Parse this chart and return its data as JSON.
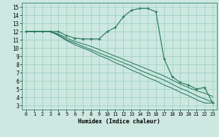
{
  "xlabel": "Humidex (Indice chaleur)",
  "bg_color": "#cce8e0",
  "grid_color": "#99ccbb",
  "line_color": "#2e7a62",
  "xlim": [
    -0.5,
    23.5
  ],
  "ylim": [
    2.5,
    15.5
  ],
  "xticks": [
    0,
    1,
    2,
    3,
    4,
    5,
    6,
    7,
    8,
    9,
    10,
    11,
    12,
    13,
    14,
    15,
    16,
    17,
    18,
    19,
    20,
    21,
    22,
    23
  ],
  "yticks": [
    3,
    4,
    5,
    6,
    7,
    8,
    9,
    10,
    11,
    12,
    13,
    14,
    15
  ],
  "lines": [
    {
      "x": [
        0,
        1,
        2,
        3,
        4,
        5,
        6,
        7,
        8,
        9,
        10,
        11,
        12,
        13,
        14,
        15,
        16,
        17,
        18,
        19,
        20,
        21,
        22,
        23
      ],
      "y": [
        12,
        12,
        12,
        12,
        12,
        11.5,
        11.2,
        11.1,
        11.1,
        11.1,
        12.0,
        12.5,
        13.8,
        14.6,
        14.8,
        14.8,
        14.4,
        8.7,
        6.5,
        5.8,
        5.5,
        5.0,
        5.2,
        3.3
      ],
      "markers": true
    },
    {
      "x": [
        0,
        1,
        2,
        3,
        4,
        5,
        6,
        7,
        8,
        9,
        10,
        11,
        12,
        13,
        14,
        15,
        16,
        17,
        18,
        19,
        20,
        21,
        22,
        23
      ],
      "y": [
        12,
        12,
        12,
        12,
        11.7,
        11.2,
        10.8,
        10.5,
        10.2,
        9.8,
        9.4,
        9.0,
        8.6,
        8.2,
        7.8,
        7.4,
        7.0,
        6.6,
        6.1,
        5.6,
        5.2,
        4.8,
        4.5,
        4.1
      ],
      "markers": false
    },
    {
      "x": [
        0,
        1,
        2,
        3,
        4,
        5,
        6,
        7,
        8,
        9,
        10,
        11,
        12,
        13,
        14,
        15,
        16,
        17,
        18,
        19,
        20,
        21,
        22,
        23
      ],
      "y": [
        12,
        12,
        12,
        12,
        11.6,
        11.0,
        10.6,
        10.2,
        9.8,
        9.4,
        9.0,
        8.6,
        8.2,
        7.8,
        7.3,
        6.9,
        6.5,
        6.1,
        5.6,
        5.1,
        4.7,
        4.2,
        3.8,
        3.4
      ],
      "markers": false
    },
    {
      "x": [
        0,
        1,
        2,
        3,
        4,
        5,
        6,
        7,
        8,
        9,
        10,
        11,
        12,
        13,
        14,
        15,
        16,
        17,
        18,
        19,
        20,
        21,
        22,
        23
      ],
      "y": [
        12,
        12,
        12,
        12,
        11.5,
        10.9,
        10.4,
        10.0,
        9.6,
        9.1,
        8.7,
        8.2,
        7.8,
        7.3,
        6.9,
        6.4,
        6.0,
        5.5,
        5.1,
        4.6,
        4.2,
        3.7,
        3.3,
        3.3
      ],
      "markers": false
    }
  ]
}
